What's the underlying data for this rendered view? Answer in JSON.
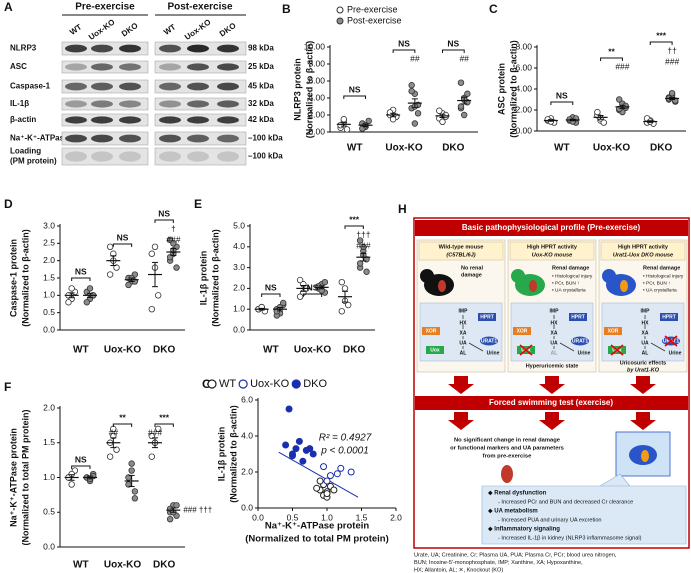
{
  "blot": {
    "panel": "A",
    "pre_label": "Pre-exercise",
    "post_label": "Post-exercise",
    "lanes": [
      "WT",
      "Uox-KO",
      "DKO",
      "WT",
      "Uox-KO",
      "DKO"
    ],
    "rows": [
      {
        "name": [
          "NLRP3"
        ],
        "size": "98 kDa"
      },
      {
        "name": [
          "ASC"
        ],
        "size": "25 kDa"
      },
      {
        "name": [
          "Caspase-1"
        ],
        "size": "45 kDa"
      },
      {
        "name": [
          "IL-1β"
        ],
        "size": "32 kDa"
      },
      {
        "name": [
          "β-actin"
        ],
        "size": "42 kDa"
      },
      {
        "name": [
          "Na⁺-K⁺-ATPase"
        ],
        "size": "–100 kDa"
      },
      {
        "name": [
          "Loading",
          "(PM protein)"
        ],
        "size": "–100 kDa"
      }
    ]
  },
  "chart_data": [
    {
      "type": "dot",
      "panel": "B",
      "ylabel": [
        "NLRP3 protein",
        "(Normalized to β-actin)"
      ],
      "categories": [
        "WT",
        "Uox-KO",
        "DKO"
      ],
      "series": [
        {
          "name": "Pre-exercise",
          "color": "#ffffff",
          "values": [
            [
              0.5,
              1.2,
              0.3,
              0.8,
              1.5
            ],
            [
              2.0,
              2.6,
              1.8,
              2.3,
              1.5
            ],
            [
              1.6,
              2.2,
              1.8,
              2.5,
              1.2,
              2.0
            ]
          ],
          "means": [
            0.9,
            2.0,
            1.9
          ],
          "sems": [
            0.2,
            0.2,
            0.2
          ]
        },
        {
          "name": "Post-exercise",
          "color": "#8c8c8c",
          "values": [
            [
              1.0,
              0.6,
              1.3,
              0.4,
              0.8
            ],
            [
              5.5,
              4.5,
              3.2,
              2.8,
              1.0,
              2.2,
              4.8,
              3.0
            ],
            [
              5.8,
              4.0,
              3.5,
              2.8,
              2.0,
              4.5,
              3.0,
              3.8
            ]
          ],
          "means": [
            0.8,
            3.4,
            3.7
          ],
          "sems": [
            0.15,
            0.5,
            0.4
          ]
        }
      ],
      "ylim": [
        0,
        10
      ],
      "yticks": [
        {
          "value": 0,
          "label": "0.00"
        },
        {
          "value": 2,
          "label": "2.00"
        },
        {
          "value": 4,
          "label": "4.00"
        },
        {
          "value": 6,
          "label": "6.00"
        },
        {
          "value": 8,
          "label": "8.00"
        },
        {
          "value": 10,
          "label": "10.00"
        }
      ],
      "annotations": [
        {
          "category": 0,
          "items": [
            {
              "text": "NS",
              "over": "pair"
            }
          ]
        },
        {
          "category": 1,
          "items": [
            {
              "text": "NS",
              "over": "pair"
            },
            {
              "text": "##",
              "over": "post"
            }
          ]
        },
        {
          "category": 2,
          "items": [
            {
              "text": "NS",
              "over": "pair"
            },
            {
              "text": "##",
              "over": "post"
            }
          ]
        }
      ]
    },
    {
      "type": "dot",
      "panel": "C",
      "ylabel": [
        "ASC protein",
        "(Normalized to β-actin)"
      ],
      "categories": [
        "WT",
        "Uox-KO",
        "DKO"
      ],
      "series": [
        {
          "color": "#ffffff",
          "values": [
            [
              1.0,
              1.2,
              0.8,
              1.1,
              0.9
            ],
            [
              1.5,
              1.0,
              0.8,
              1.8,
              1.2
            ],
            [
              0.8,
              1.0,
              0.7,
              1.2,
              0.9
            ]
          ],
          "means": [
            1.0,
            1.3,
            0.9
          ],
          "sems": [
            0.07,
            0.18,
            0.08
          ]
        },
        {
          "color": "#8c8c8c",
          "values": [
            [
              1.0,
              1.3,
              0.8,
              1.1,
              0.9,
              1.2
            ],
            [
              2.0,
              2.6,
              2.2,
              3.0,
              1.8,
              2.4,
              2.1
            ],
            [
              3.0,
              3.4,
              2.8,
              3.2,
              3.6,
              2.9,
              3.1
            ]
          ],
          "means": [
            1.05,
            2.3,
            3.1
          ],
          "sems": [
            0.07,
            0.15,
            0.1
          ]
        }
      ],
      "ylim": [
        0,
        8
      ],
      "yticks": [
        {
          "value": 0,
          "label": "0.00"
        },
        {
          "value": 2,
          "label": "2.00"
        },
        {
          "value": 4,
          "label": "4.00"
        },
        {
          "value": 6,
          "label": "6.00"
        },
        {
          "value": 8,
          "label": "8.00"
        }
      ],
      "annotations": [
        {
          "category": 0,
          "items": [
            {
              "text": "NS",
              "over": "pair"
            }
          ]
        },
        {
          "category": 1,
          "items": [
            {
              "text": "**",
              "over": "pair"
            },
            {
              "text": "###",
              "over": "post"
            }
          ]
        },
        {
          "category": 2,
          "items": [
            {
              "text": "***",
              "over": "pair"
            },
            {
              "text": "††",
              "over": "post"
            },
            {
              "text": "###",
              "over": "post"
            }
          ]
        }
      ]
    },
    {
      "type": "dot",
      "panel": "D",
      "ylabel": [
        "Caspase-1 protein",
        "(Normalized to β-actin)"
      ],
      "categories": [
        "WT",
        "Uox-KO",
        "DKO"
      ],
      "series": [
        {
          "color": "#ffffff",
          "values": [
            [
              1.0,
              0.9,
              1.1,
              0.8,
              1.2
            ],
            [
              2.4,
              2.2,
              1.8,
              1.6,
              2.0
            ],
            [
              2.2,
              1.8,
              1.0,
              0.6,
              2.4
            ]
          ],
          "means": [
            1.0,
            2.0,
            1.6
          ],
          "sems": [
            0.07,
            0.14,
            0.35
          ]
        },
        {
          "color": "#8c8c8c",
          "values": [
            [
              1.1,
              0.9,
              1.0,
              0.8,
              1.2,
              1.0
            ],
            [
              1.5,
              1.4,
              1.6,
              1.3,
              1.5,
              1.4
            ],
            [
              2.6,
              2.2,
              2.4,
              2.0,
              2.3,
              1.8,
              2.1,
              2.5
            ]
          ],
          "means": [
            1.0,
            1.45,
            2.25
          ],
          "sems": [
            0.06,
            0.05,
            0.1
          ]
        }
      ],
      "ylim": [
        0,
        3
      ],
      "yticks": [
        {
          "value": 0,
          "label": "0.0"
        },
        0.5,
        {
          "value": 1,
          "label": "1.0"
        },
        1.5,
        {
          "value": 2,
          "label": "2.0"
        },
        2.5,
        {
          "value": 3,
          "label": "3.0"
        }
      ],
      "annotations": [
        {
          "category": 0,
          "items": [
            {
              "text": "NS",
              "over": "pair"
            }
          ]
        },
        {
          "category": 1,
          "items": [
            {
              "text": "NS",
              "over": "pair"
            }
          ]
        },
        {
          "category": 2,
          "items": [
            {
              "text": "NS",
              "over": "pair"
            },
            {
              "text": "†",
              "over": "post"
            },
            {
              "text": "###",
              "over": "post"
            }
          ]
        }
      ]
    },
    {
      "type": "dot",
      "panel": "E",
      "ylabel": [
        "IL-1β protein",
        "(Normalized to β-actin)"
      ],
      "categories": [
        "WT",
        "Uox-KO",
        "DKO"
      ],
      "series": [
        {
          "color": "#ffffff",
          "values": [
            [
              1.0,
              1.1,
              0.9,
              1.0,
              1.1
            ],
            [
              2.4,
              1.8,
              2.0,
              1.6,
              2.2
            ],
            [
              2.3,
              1.4,
              1.2,
              0.9,
              2.0
            ]
          ],
          "means": [
            1.0,
            2.0,
            1.6
          ],
          "sems": [
            0.04,
            0.14,
            0.26
          ]
        },
        {
          "color": "#8c8c8c",
          "values": [
            [
              1.0,
              0.8,
              1.2,
              0.7,
              1.1,
              1.3,
              0.9
            ],
            [
              2.0,
              2.2,
              1.8,
              2.1,
              1.9,
              2.3
            ],
            [
              4.3,
              3.8,
              3.4,
              3.0,
              3.6,
              2.8,
              3.2,
              4.0
            ]
          ],
          "means": [
            1.0,
            2.05,
            3.5
          ],
          "sems": [
            0.08,
            0.07,
            0.18
          ]
        }
      ],
      "ylim": [
        0,
        5
      ],
      "yticks": [
        {
          "value": 0,
          "label": "0.0"
        },
        {
          "value": 1,
          "label": "1.0"
        },
        {
          "value": 2,
          "label": "2.0"
        },
        {
          "value": 3,
          "label": "3.0"
        },
        {
          "value": 4,
          "label": "4.0"
        },
        {
          "value": 5,
          "label": "5.0"
        }
      ],
      "annotations": [
        {
          "category": 0,
          "items": [
            {
              "text": "NS",
              "over": "pair"
            }
          ]
        },
        {
          "category": 1,
          "items": [
            {
              "text": "NS",
              "over": "pair"
            }
          ]
        },
        {
          "category": 2,
          "items": [
            {
              "text": "***",
              "over": "pair"
            },
            {
              "text": "†††",
              "over": "post"
            },
            {
              "text": "###",
              "over": "post"
            }
          ]
        }
      ]
    },
    {
      "type": "dot",
      "panel": "F",
      "ylabel": [
        "Na⁺-K⁺-ATPase protein",
        "(Normalized to total PM protein)"
      ],
      "categories": [
        "WT",
        "Uox-KO",
        "DKO"
      ],
      "series": [
        {
          "color": "#ffffff",
          "values": [
            [
              1.0,
              0.9,
              1.1,
              1.0,
              1.05
            ],
            [
              1.5,
              1.7,
              1.4,
              1.3,
              1.6
            ],
            [
              1.6,
              1.5,
              1.7,
              1.3,
              1.5
            ]
          ],
          "means": [
            1.0,
            1.5,
            1.5
          ],
          "sems": [
            0.04,
            0.07,
            0.07
          ]
        },
        {
          "color": "#8c8c8c",
          "values": [
            [
              1.0,
              0.95,
              1.05,
              1.0,
              0.98,
              1.02
            ],
            [
              1.0,
              1.1,
              0.8,
              0.9,
              1.2,
              0.7
            ],
            [
              0.5,
              0.6,
              0.45,
              0.55,
              0.5,
              0.6,
              0.4
            ]
          ],
          "means": [
            1.0,
            0.95,
            0.53
          ],
          "sems": [
            0.02,
            0.08,
            0.03
          ]
        }
      ],
      "ylim": [
        0,
        2
      ],
      "yticks": [
        {
          "value": 0,
          "label": "0.0"
        },
        0.5,
        {
          "value": 1,
          "label": "1.0"
        },
        1.5,
        {
          "value": 2,
          "label": "2.0"
        }
      ],
      "annotations": [
        {
          "category": 0,
          "items": [
            {
              "text": "NS",
              "over": "pair"
            }
          ]
        },
        {
          "category": 1,
          "items": [
            {
              "text": "**",
              "over": "pair"
            },
            {
              "text": "##",
              "over": "pre"
            }
          ]
        },
        {
          "category": 2,
          "items": [
            {
              "text": "***",
              "over": "pair"
            },
            {
              "text": "###",
              "over": "pre"
            },
            {
              "text": "### †††",
              "over": "low"
            }
          ]
        }
      ]
    },
    {
      "type": "scatter",
      "panel": "G",
      "ylabel": [
        "IL-1β protein",
        "(Normalized to β-actin)"
      ],
      "xlabel": [
        "Na⁺-K⁺-ATPase protein",
        "(Normalized to total PM protein)"
      ],
      "series": [
        {
          "name": "WT",
          "color": "#222222",
          "filled": false,
          "x": [
            0.9,
            1.0,
            1.05,
            0.95,
            1.0,
            1.1,
            0.95,
            0.85,
            1.0,
            0.9
          ],
          "values": [
            1.0,
            0.9,
            1.2,
            0.7,
            0.6,
            1.0,
            1.3,
            1.1,
            0.8,
            1.5
          ]
        },
        {
          "name": "Uox-KO",
          "color": "#1a2fb0",
          "filled": false,
          "x": [
            1.2,
            1.35,
            1.05,
            1.15,
            0.95,
            1.0
          ],
          "values": [
            2.2,
            2.0,
            1.8,
            1.9,
            2.3,
            1.5
          ]
        },
        {
          "name": "DKO",
          "color": "#1a2fb0",
          "filled": true,
          "x": [
            0.45,
            0.4,
            0.5,
            0.55,
            0.6,
            0.65,
            0.7,
            0.75,
            0.8,
            0.5
          ],
          "values": [
            5.5,
            3.5,
            3.0,
            3.3,
            3.7,
            2.6,
            3.2,
            3.3,
            3.0,
            2.9
          ]
        }
      ],
      "fit": {
        "color": "#1a2fb0",
        "x": [
          0.3,
          1.45
        ],
        "values": [
          3.1,
          0.6
        ]
      },
      "annotations": [
        "R² = 0.4927",
        "p < 0.0001"
      ],
      "xlim": [
        0,
        2
      ],
      "xticks": [
        {
          "value": 0,
          "label": "0.0"
        },
        0.5,
        {
          "value": 1,
          "label": "1.0"
        },
        1.5,
        {
          "value": 2,
          "label": "2.0"
        }
      ],
      "ylim": [
        0,
        6
      ],
      "yticks": [
        {
          "value": 0,
          "label": "0.0"
        },
        {
          "value": 2,
          "label": "2.0"
        },
        {
          "value": 4,
          "label": "4.0"
        },
        {
          "value": 6,
          "label": "6.0"
        }
      ]
    }
  ],
  "diagram": {
    "panel": "H",
    "header": "Basic pathophysiological profile (Pre-exercise)",
    "columns": [
      {
        "title": [
          "Wild-type mouse",
          "(C57BL/6J)"
        ],
        "note": [
          "No renal",
          "damage"
        ],
        "pathway": [
          "IMP",
          "HPRT",
          "HX",
          "XOR",
          "XA",
          "UA",
          "URAT1",
          "Uox",
          "AL",
          "Urine"
        ]
      },
      {
        "title": [
          "High HPRT activity",
          "Uox-KO mouse"
        ],
        "note": [
          "Renal damage"
        ],
        "findings": [
          "• Histological injury",
          "• PCr, BUN ↑",
          "• UA crystalluria"
        ],
        "pathway": [
          "IMP",
          "HPRT",
          "HX",
          "XOR",
          "XA",
          "UA",
          "URAT1",
          "Uox",
          "AL",
          "Urine"
        ],
        "caption": [
          "Hyperuricemic state"
        ]
      },
      {
        "title": [
          "High HPRT activity",
          "Urat1-Uox DKO mouse"
        ],
        "note": [
          "Renal damage"
        ],
        "findings": [
          "• Histological injury",
          "• PCr, BUN ↑",
          "• UA crystalluria"
        ],
        "pathway": [
          "IMP",
          "HPRT",
          "HX",
          "XOR",
          "XA",
          "UA",
          "URAT1",
          "Uox",
          "AL",
          "Urine"
        ],
        "caption": [
          "Uricosuric effects",
          "by Urat1-KO"
        ]
      }
    ],
    "exercise": "Forced swimming test (exercise)",
    "no_change": [
      "No significant change in renal damage",
      "or functional markers and UA parameters",
      "from pre-exercise"
    ],
    "effects": [
      {
        "heading": "◆ Renal dysfunction",
        "detail": "- Increased PCr and BUN and decreased Cr clearance"
      },
      {
        "heading": "◆ UA metabolism",
        "detail": "- Increased PUA and urinary UA excretion"
      },
      {
        "heading": "◆ Inflammatory signaling",
        "detail": "- Increased IL-1β in kidney (NLRP3 inflammasome signal)"
      }
    ],
    "footnote": [
      "Urate, UA; Creatinine, Cr; Plasma UA, PUA; Plasma Cr, PCr; blood urea nitrogen,",
      "BUN; Inosine-5′-monophosphate, IMP; Xanthine, XA; Hypoxanthine,",
      "HX; Allantoin, AL; ✕, Knockout (KO)"
    ]
  }
}
